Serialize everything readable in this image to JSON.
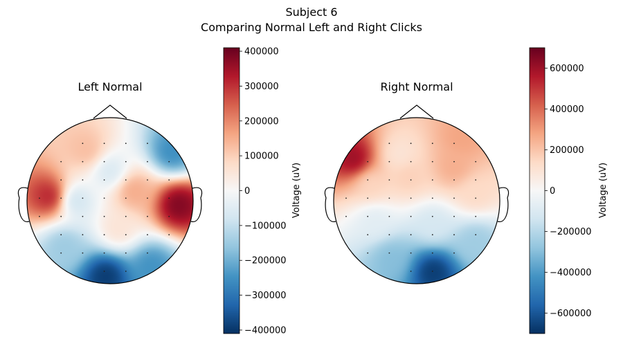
{
  "suptitle": {
    "line1": "Subject 6",
    "line2": "Comparing Normal Left and Right Clicks"
  },
  "chart_data": [
    {
      "type": "heatmap",
      "title": "Left Normal",
      "colorbar": {
        "label": "Voltage (uV)",
        "vmin": -410000,
        "vmax": 410000,
        "ticks": [
          400000,
          300000,
          200000,
          100000,
          0,
          -100000,
          -200000,
          -300000,
          -400000
        ],
        "tick_labels": [
          "400000",
          "300000",
          "200000",
          "100000",
          "0",
          "−100000",
          "−200000",
          "−300000",
          "−400000"
        ],
        "colormap": "RdBu_r"
      },
      "sources": [
        {
          "x": -0.72,
          "y": 0.05,
          "v": 330000
        },
        {
          "x": 0.82,
          "y": -0.05,
          "v": 390000
        },
        {
          "x": -0.28,
          "y": 0.6,
          "v": 130000
        },
        {
          "x": 0.28,
          "y": 0.12,
          "v": 160000
        },
        {
          "x": 0.1,
          "y": -0.35,
          "v": 60000
        },
        {
          "x": -0.42,
          "y": 0.0,
          "v": -90000
        },
        {
          "x": -0.05,
          "y": -0.9,
          "v": -400000
        },
        {
          "x": 0.5,
          "y": -0.78,
          "v": -250000
        },
        {
          "x": 0.75,
          "y": 0.58,
          "v": -260000
        },
        {
          "x": -0.55,
          "y": -0.55,
          "v": -150000
        },
        {
          "x": 0.0,
          "y": 0.35,
          "v": -70000
        }
      ]
    },
    {
      "type": "heatmap",
      "title": "Right Normal",
      "colorbar": {
        "label": "Voltage (uV)",
        "vmin": -700000,
        "vmax": 700000,
        "ticks": [
          600000,
          400000,
          200000,
          0,
          -200000,
          -400000,
          -600000
        ],
        "tick_labels": [
          "600000",
          "400000",
          "200000",
          "0",
          "−200000",
          "−400000",
          "−600000"
        ],
        "colormap": "RdBu_r"
      },
      "sources": [
        {
          "x": -0.75,
          "y": 0.5,
          "v": 620000
        },
        {
          "x": 0.45,
          "y": 0.4,
          "v": 260000
        },
        {
          "x": 0.55,
          "y": 0.75,
          "v": 280000
        },
        {
          "x": -0.1,
          "y": 0.3,
          "v": 170000
        },
        {
          "x": -0.2,
          "y": 0.55,
          "v": 90000
        },
        {
          "x": 0.7,
          "y": 0.1,
          "v": 140000
        },
        {
          "x": -0.55,
          "y": 0.2,
          "v": 150000
        },
        {
          "x": 0.2,
          "y": -0.85,
          "v": -680000
        },
        {
          "x": -0.3,
          "y": -0.7,
          "v": -300000
        },
        {
          "x": 0.7,
          "y": -0.5,
          "v": -250000
        },
        {
          "x": -0.5,
          "y": -0.25,
          "v": -80000
        },
        {
          "x": 0.2,
          "y": -0.3,
          "v": -120000
        }
      ]
    }
  ]
}
